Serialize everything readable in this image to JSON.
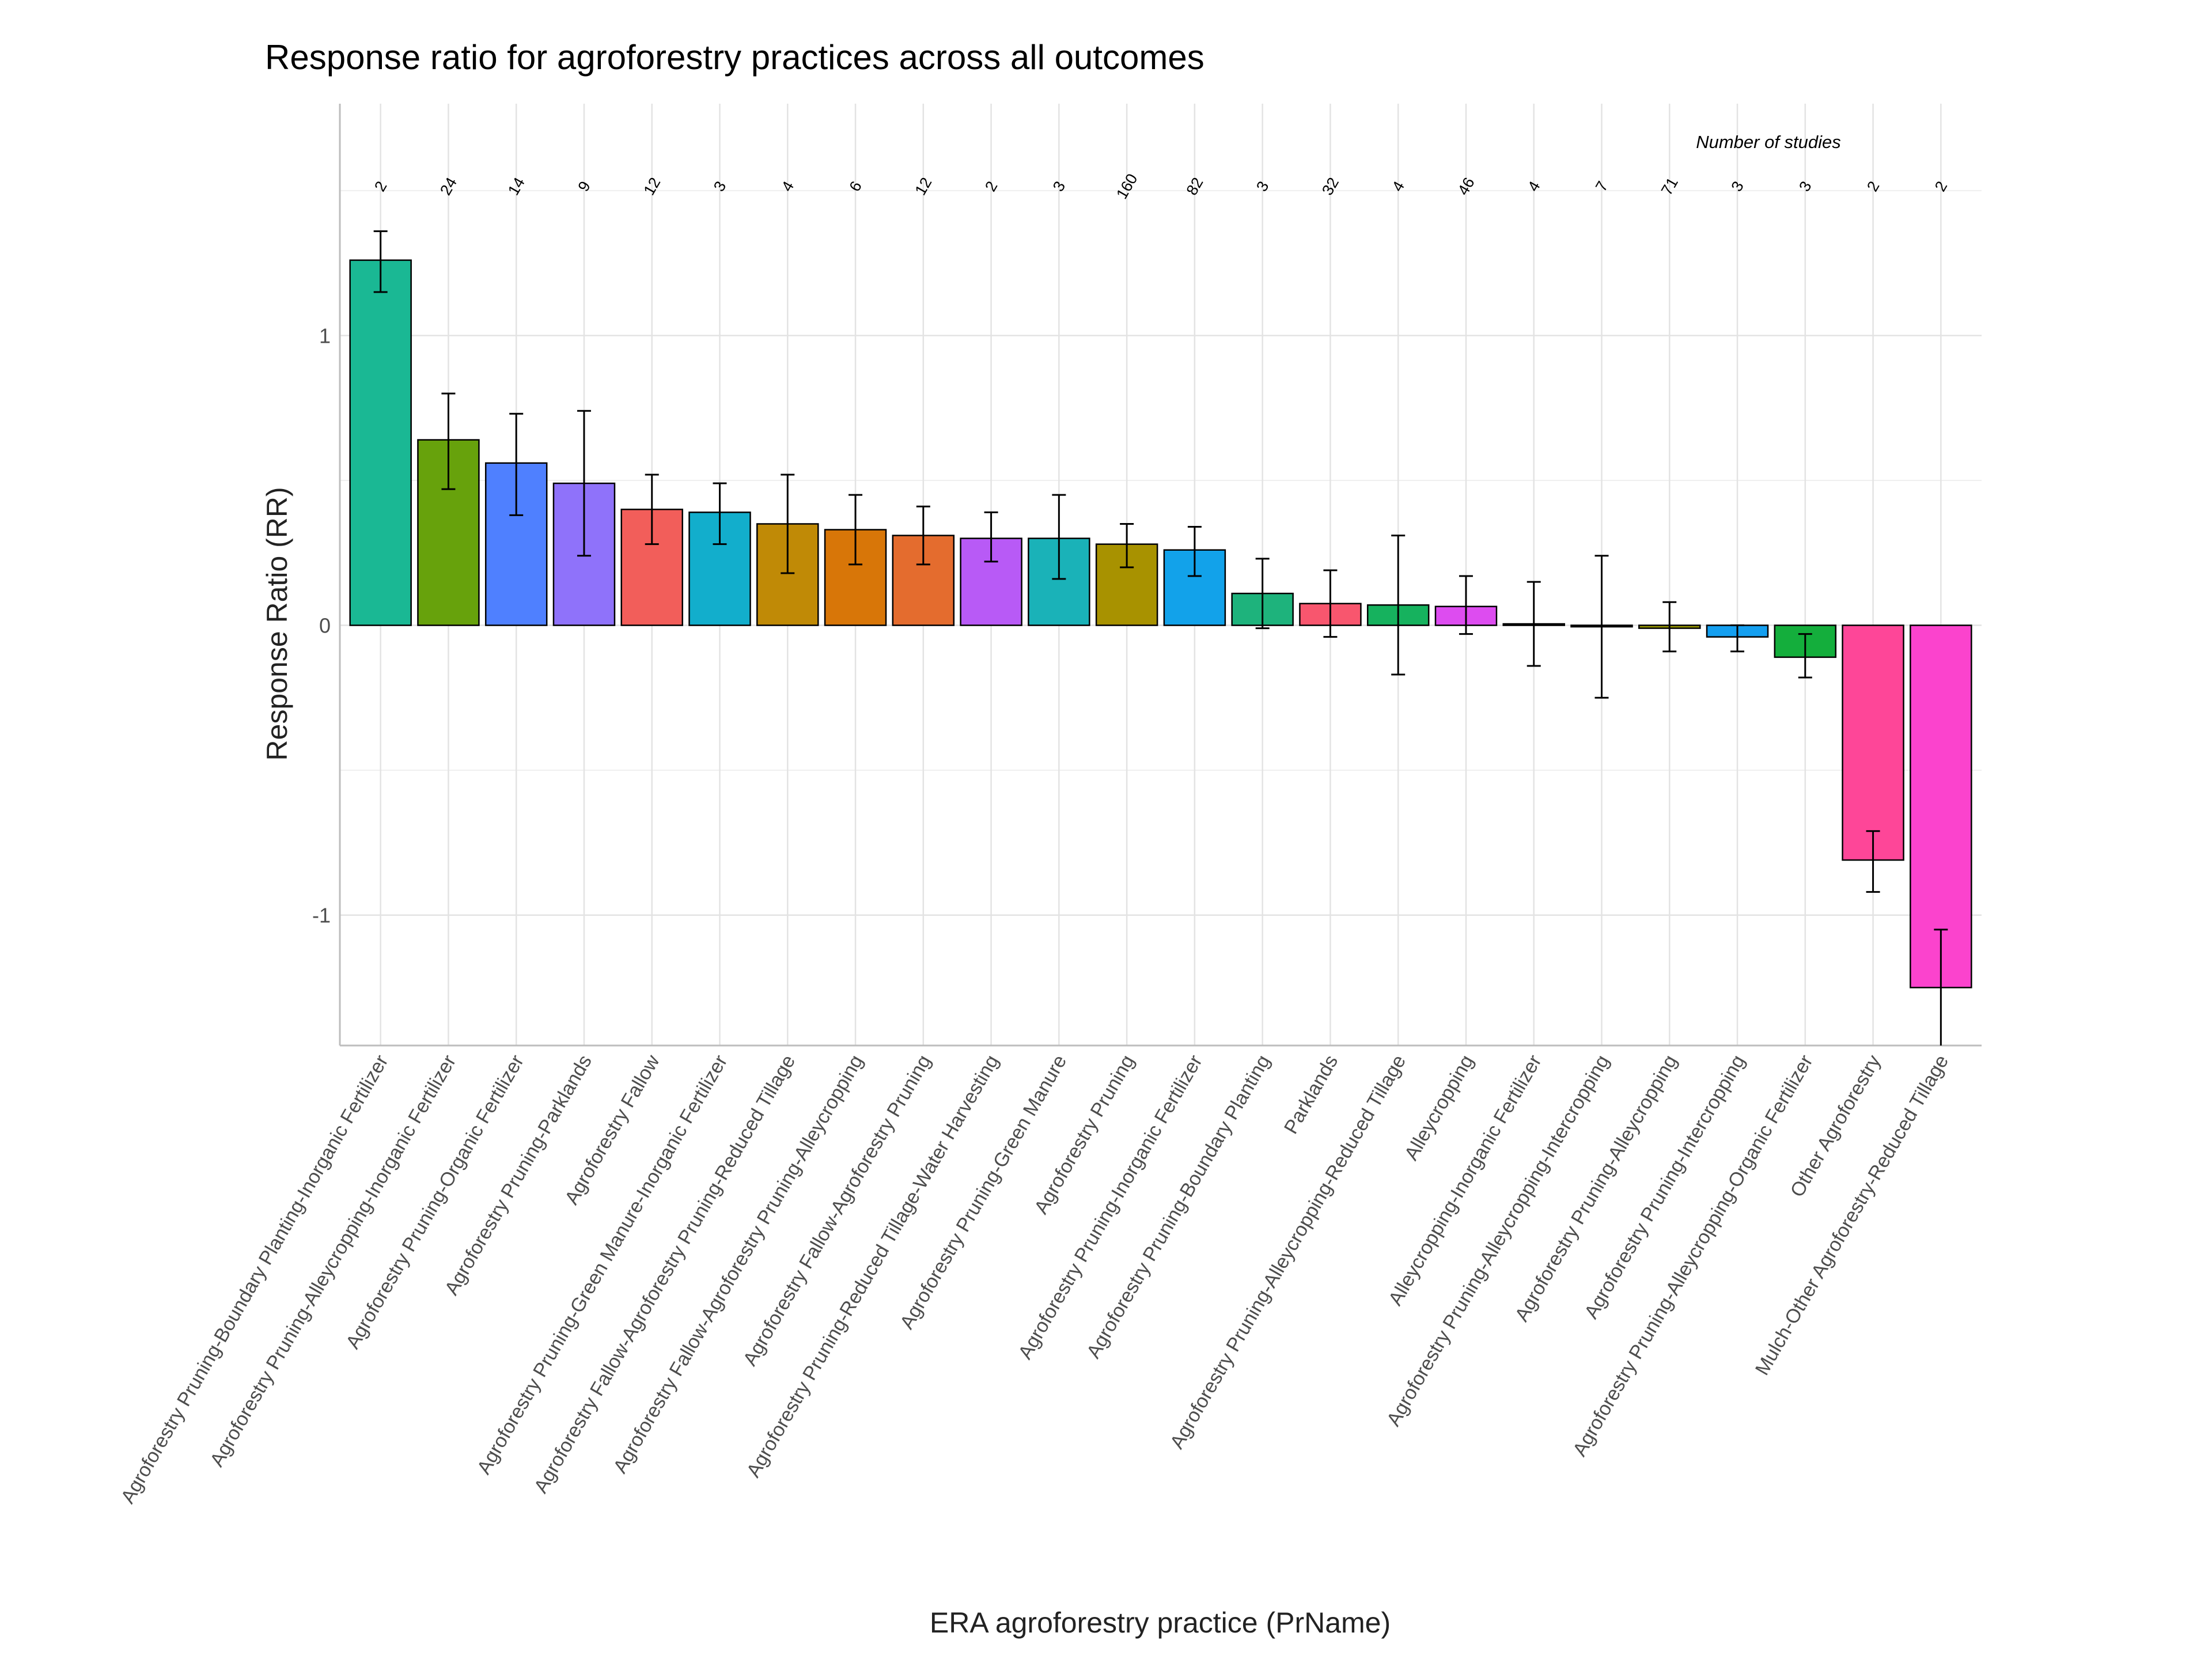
{
  "chart_data": {
    "type": "bar",
    "title": "Response ratio for agroforestry practices across all outcomes",
    "xlabel": "ERA agroforestry practice (PrName)",
    "ylabel": "Response Ratio (RR)",
    "ylim": [
      -1.45,
      1.8
    ],
    "yticks": [
      -1,
      0,
      1
    ],
    "y_tick_labels": [
      "-1",
      "0",
      "1"
    ],
    "grid": true,
    "annotation": "Number of studies",
    "categories": [
      "Agroforestry Pruning-Boundary Planting-Inorganic Fertilizer",
      "Agroforestry Pruning-Alleycropping-Inorganic Fertilizer",
      "Agroforestry Pruning-Organic Fertilizer",
      "Agroforestry Pruning-Parklands",
      "Agroforestry Fallow",
      "Agroforestry Pruning-Green Manure-Inorganic Fertilizer",
      "Agroforestry Fallow-Agroforestry Pruning-Reduced Tillage",
      "Agroforestry Fallow-Agroforestry Pruning-Alleycropping",
      "Agroforestry Fallow-Agroforestry Pruning",
      "Agroforestry Pruning-Reduced Tillage-Water Harvesting",
      "Agroforestry Pruning-Green Manure",
      "Agroforestry Pruning",
      "Agroforestry Pruning-Inorganic Fertilizer",
      "Agroforestry Pruning-Boundary Planting",
      "Parklands",
      "Agroforestry Pruning-Alleycropping-Reduced Tillage",
      "Alleycropping",
      "Alleycropping-Inorganic Fertilizer",
      "Agroforestry Pruning-Alleycropping-Intercropping",
      "Agroforestry Pruning-Alleycropping",
      "Agroforestry Pruning-Intercropping",
      "Agroforestry Pruning-Alleycropping-Organic Fertilizer",
      "Other Agroforestry",
      "Mulch-Other Agroforestry-Reduced Tillage"
    ],
    "values": [
      1.26,
      0.64,
      0.56,
      0.49,
      0.4,
      0.39,
      0.35,
      0.33,
      0.31,
      0.3,
      0.3,
      0.28,
      0.26,
      0.11,
      0.075,
      0.07,
      0.065,
      0.005,
      -0.005,
      -0.01,
      -0.04,
      -0.11,
      -0.81,
      -1.25
    ],
    "lower": [
      1.15,
      0.47,
      0.38,
      0.24,
      0.28,
      0.28,
      0.18,
      0.21,
      0.21,
      0.22,
      0.16,
      0.2,
      0.17,
      -0.01,
      -0.04,
      -0.17,
      -0.03,
      -0.14,
      -0.25,
      -0.09,
      -0.09,
      -0.18,
      -0.92,
      -1.45
    ],
    "upper": [
      1.36,
      0.8,
      0.73,
      0.74,
      0.52,
      0.49,
      0.52,
      0.45,
      0.41,
      0.39,
      0.45,
      0.35,
      0.34,
      0.23,
      0.19,
      0.31,
      0.17,
      0.15,
      0.24,
      0.08,
      0.0,
      -0.03,
      -0.71,
      -1.05
    ],
    "n_studies": [
      "2",
      "24",
      "14",
      "9",
      "12",
      "3",
      "4",
      "6",
      "12",
      "2",
      "3",
      "160",
      "82",
      "3",
      "32",
      "4",
      "46",
      "4",
      "7",
      "71",
      "3",
      "3",
      "2",
      "2"
    ],
    "colors": [
      "#1ab894",
      "#67a20c",
      "#4f80ff",
      "#8f72fa",
      "#f25e5a",
      "#12aecc",
      "#c08a06",
      "#d87608",
      "#e46c2e",
      "#b85af6",
      "#1ab2b8",
      "#a89200",
      "#12a2ea",
      "#1eb37c",
      "#f8566e",
      "#16b25e",
      "#dd4cf0",
      "#7d9f00",
      "#1ab49e",
      "#9a9a00",
      "#149ff0",
      "#14ae3c",
      "#fe4698",
      "#fb43cd"
    ]
  }
}
